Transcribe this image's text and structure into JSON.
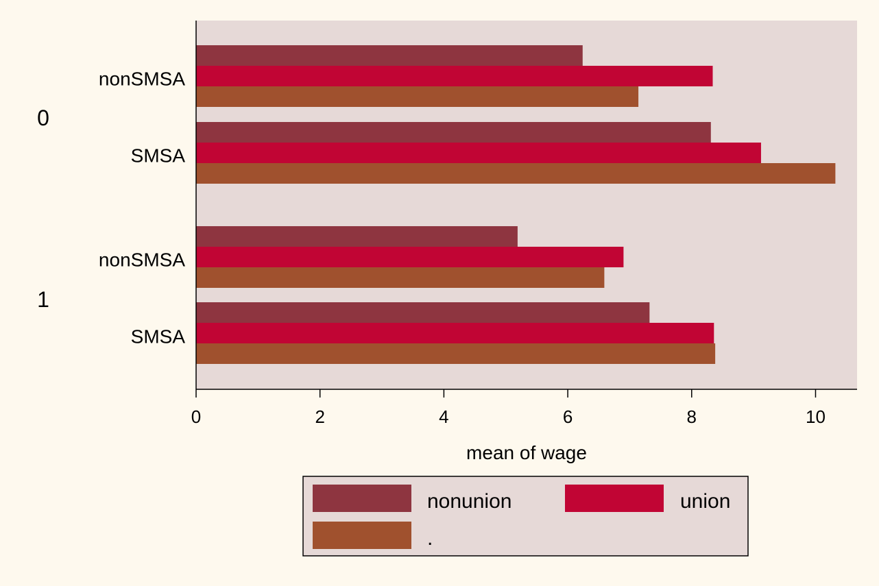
{
  "chart_data": {
    "type": "bar",
    "orientation": "horizontal",
    "groups": [
      {
        "label": "0",
        "categories": [
          "nonSMSA",
          "SMSA"
        ]
      },
      {
        "label": "1",
        "categories": [
          "nonSMSA",
          "SMSA"
        ]
      }
    ],
    "series": [
      {
        "name": "nonunion",
        "color": "#8e3540",
        "values": [
          6.24,
          8.31,
          5.19,
          7.32
        ]
      },
      {
        "name": "union",
        "color": "#c10534",
        "values": [
          8.34,
          9.12,
          6.9,
          8.36
        ]
      },
      {
        "name": ".",
        "color": "#a0512e",
        "values": [
          7.14,
          10.32,
          6.59,
          8.38
        ]
      }
    ],
    "xlabel": "mean of wage",
    "xlim": [
      0,
      10.67
    ],
    "xticks": [
      0,
      2,
      4,
      6,
      8,
      10
    ],
    "grid": false,
    "legend_position": "bottom",
    "colors": {
      "background": "#fef9ee",
      "plot_area": "#e6d9d7"
    }
  }
}
